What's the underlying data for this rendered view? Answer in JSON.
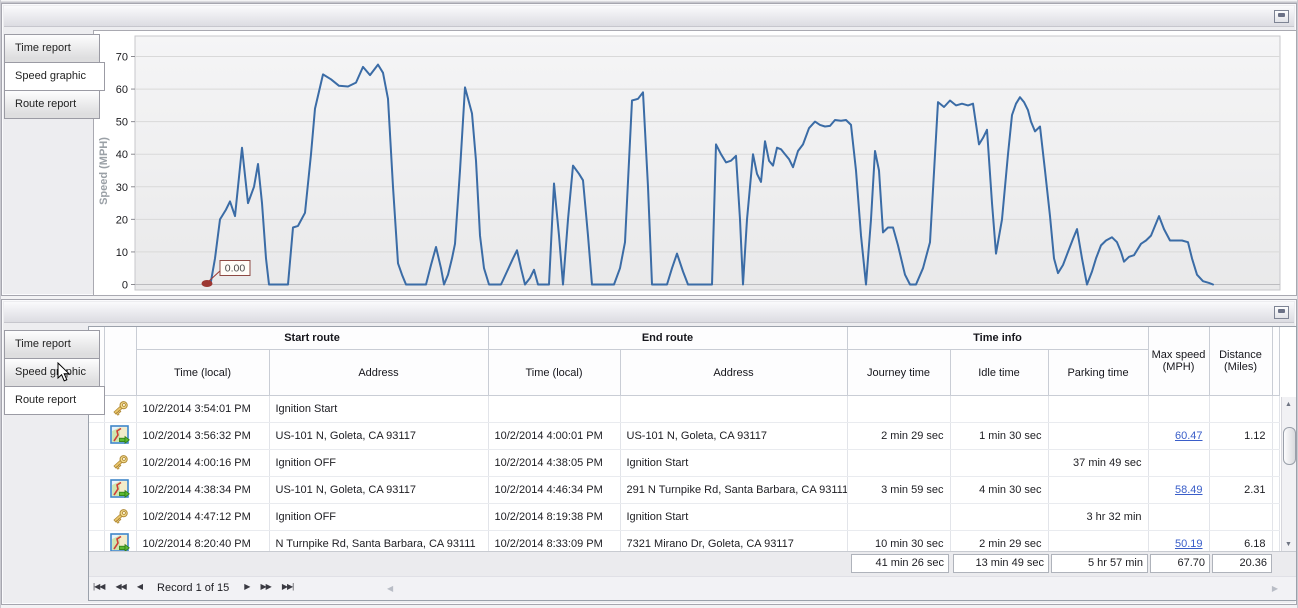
{
  "top_panel": {
    "tabs": [
      {
        "label": "Time report",
        "active": false
      },
      {
        "label": "Speed graphic",
        "active": true
      },
      {
        "label": "Route report",
        "active": false
      }
    ]
  },
  "bottom_panel": {
    "tabs": [
      {
        "label": "Time report",
        "active": false
      },
      {
        "label": "Speed graphic",
        "active": false
      },
      {
        "label": "Route report",
        "active": true
      }
    ]
  },
  "chart_data": {
    "type": "line",
    "title": "",
    "ylabel": "Speed (MPH)",
    "yticks": [
      0,
      10,
      20,
      30,
      40,
      50,
      60,
      70
    ],
    "ylim": [
      0,
      72
    ],
    "xlabel": "",
    "x_axis_note": "time axis, no tick labels visible",
    "grid": "horizontal",
    "line_color": "#3b6ca6",
    "annotation": {
      "label": "0.00",
      "marker_color": "#9c3732"
    },
    "points": [
      [
        205,
        0
      ],
      [
        209,
        1
      ],
      [
        213,
        8
      ],
      [
        218,
        20
      ],
      [
        224,
        23
      ],
      [
        228,
        25.5
      ],
      [
        233,
        21
      ],
      [
        240,
        42
      ],
      [
        246,
        25
      ],
      [
        252,
        30
      ],
      [
        256,
        37
      ],
      [
        260,
        25
      ],
      [
        264,
        8
      ],
      [
        267,
        0
      ],
      [
        286,
        0
      ],
      [
        291,
        17.5
      ],
      [
        296,
        18
      ],
      [
        303,
        22
      ],
      [
        309,
        40
      ],
      [
        313,
        54
      ],
      [
        321,
        64.5
      ],
      [
        329,
        63
      ],
      [
        337,
        61
      ],
      [
        346,
        60.8
      ],
      [
        354,
        62
      ],
      [
        361,
        66.8
      ],
      [
        368,
        64.3
      ],
      [
        376,
        67.5
      ],
      [
        381,
        65
      ],
      [
        386,
        57
      ],
      [
        391,
        30
      ],
      [
        396,
        6.5
      ],
      [
        400,
        3
      ],
      [
        404,
        0
      ],
      [
        424,
        0
      ],
      [
        429,
        6
      ],
      [
        434,
        11.5
      ],
      [
        439,
        5
      ],
      [
        442,
        0
      ],
      [
        446,
        3
      ],
      [
        450,
        8
      ],
      [
        453,
        12.5
      ],
      [
        458,
        35
      ],
      [
        463,
        60.5
      ],
      [
        470,
        52.5
      ],
      [
        474,
        38
      ],
      [
        478,
        15
      ],
      [
        482,
        5
      ],
      [
        487,
        0
      ],
      [
        499,
        0
      ],
      [
        505,
        4
      ],
      [
        511,
        8
      ],
      [
        515,
        10.5
      ],
      [
        519,
        5
      ],
      [
        523,
        0
      ],
      [
        528,
        2
      ],
      [
        532,
        4.5
      ],
      [
        536,
        0
      ],
      [
        547,
        0
      ],
      [
        552,
        31
      ],
      [
        557,
        15
      ],
      [
        561,
        0
      ],
      [
        566,
        20
      ],
      [
        571,
        36.5
      ],
      [
        577,
        34
      ],
      [
        581,
        32
      ],
      [
        586,
        15
      ],
      [
        590,
        0
      ],
      [
        612,
        0
      ],
      [
        618,
        5
      ],
      [
        623,
        13
      ],
      [
        630,
        56.5
      ],
      [
        636,
        57
      ],
      [
        641,
        59
      ],
      [
        646,
        30
      ],
      [
        650,
        0
      ],
      [
        665,
        0
      ],
      [
        670,
        5
      ],
      [
        675,
        9.5
      ],
      [
        681,
        4
      ],
      [
        686,
        0
      ],
      [
        710,
        0
      ],
      [
        714,
        43
      ],
      [
        719,
        40
      ],
      [
        724,
        37.5
      ],
      [
        729,
        38
      ],
      [
        734,
        39.5
      ],
      [
        738,
        20
      ],
      [
        741,
        0
      ],
      [
        745,
        20
      ],
      [
        751,
        40
      ],
      [
        755,
        34
      ],
      [
        759,
        31.5
      ],
      [
        763,
        44
      ],
      [
        767,
        38
      ],
      [
        771,
        36.5
      ],
      [
        775,
        42
      ],
      [
        779,
        41.5
      ],
      [
        783,
        40
      ],
      [
        787,
        38.5
      ],
      [
        791,
        36
      ],
      [
        796,
        41
      ],
      [
        801,
        43
      ],
      [
        807,
        48
      ],
      [
        813,
        50
      ],
      [
        818,
        49
      ],
      [
        823,
        48.5
      ],
      [
        828,
        48.7
      ],
      [
        833,
        50.5
      ],
      [
        839,
        50.3
      ],
      [
        844,
        50.5
      ],
      [
        849,
        49
      ],
      [
        854,
        35
      ],
      [
        859,
        15
      ],
      [
        864,
        0
      ],
      [
        869,
        20
      ],
      [
        873,
        41
      ],
      [
        877,
        35
      ],
      [
        881,
        16
      ],
      [
        886,
        17.5
      ],
      [
        891,
        17.5
      ],
      [
        896,
        12
      ],
      [
        903,
        3
      ],
      [
        908,
        0
      ],
      [
        914,
        0
      ],
      [
        921,
        5
      ],
      [
        928,
        13
      ],
      [
        936,
        56
      ],
      [
        942,
        54.5
      ],
      [
        948,
        56.5
      ],
      [
        954,
        55
      ],
      [
        960,
        55.5
      ],
      [
        966,
        55
      ],
      [
        971,
        55.5
      ],
      [
        977,
        43
      ],
      [
        981,
        45
      ],
      [
        985,
        47.5
      ],
      [
        990,
        25
      ],
      [
        994,
        9.5
      ],
      [
        1000,
        20
      ],
      [
        1006,
        40
      ],
      [
        1010,
        52
      ],
      [
        1014,
        55.5
      ],
      [
        1018,
        57.5
      ],
      [
        1022,
        56
      ],
      [
        1026,
        53.5
      ],
      [
        1029,
        50
      ],
      [
        1033,
        47
      ],
      [
        1038,
        48.5
      ],
      [
        1043,
        35
      ],
      [
        1048,
        21
      ],
      [
        1052,
        8
      ],
      [
        1056,
        3.5
      ],
      [
        1061,
        6
      ],
      [
        1066,
        10
      ],
      [
        1071,
        14
      ],
      [
        1075,
        17
      ],
      [
        1080,
        8
      ],
      [
        1085,
        0
      ],
      [
        1090,
        4
      ],
      [
        1094,
        8
      ],
      [
        1099,
        12
      ],
      [
        1104,
        13.5
      ],
      [
        1110,
        14.5
      ],
      [
        1115,
        13
      ],
      [
        1119,
        10
      ],
      [
        1122,
        7
      ],
      [
        1127,
        8.5
      ],
      [
        1132,
        9
      ],
      [
        1139,
        12.5
      ],
      [
        1144,
        13.5
      ],
      [
        1149,
        15
      ],
      [
        1153,
        18
      ],
      [
        1157,
        21
      ],
      [
        1162,
        17
      ],
      [
        1168,
        13.5
      ],
      [
        1174,
        13.5
      ],
      [
        1180,
        13.5
      ],
      [
        1186,
        13
      ],
      [
        1190,
        8
      ],
      [
        1195,
        3
      ],
      [
        1201,
        1
      ],
      [
        1207,
        0.5
      ],
      [
        1211,
        0
      ]
    ]
  },
  "table": {
    "groups": [
      {
        "label": "Start route"
      },
      {
        "label": "End route"
      },
      {
        "label": "Time info"
      }
    ],
    "sub_columns": {
      "start_time": "Time (local)",
      "start_address": "Address",
      "end_time": "Time (local)",
      "end_address": "Address",
      "journey": "Journey time",
      "idle": "Idle time",
      "parking": "Parking time"
    },
    "tall_columns": {
      "max_speed": "Max speed\n(MPH)",
      "distance": "Distance\n(Miles)"
    },
    "rows": [
      {
        "icon": "key-icon",
        "start_time": "10/2/2014 3:54:01 PM",
        "start_address": "Ignition Start",
        "end_time": "",
        "end_address": "",
        "journey": "",
        "idle": "",
        "parking": "",
        "max_speed": "",
        "max_speed_link": false,
        "distance": ""
      },
      {
        "icon": "route-icon",
        "start_time": "10/2/2014 3:56:32 PM",
        "start_address": "US-101 N, Goleta, CA 93117",
        "end_time": "10/2/2014 4:00:01 PM",
        "end_address": "US-101 N, Goleta, CA 93117",
        "journey": "2 min 29 sec",
        "idle": "1 min 30 sec",
        "parking": "",
        "max_speed": "60.47",
        "max_speed_link": true,
        "distance": "1.12"
      },
      {
        "icon": "key-icon",
        "start_time": "10/2/2014 4:00:16 PM",
        "start_address": "Ignition OFF",
        "end_time": "10/2/2014 4:38:05 PM",
        "end_address": "Ignition Start",
        "journey": "",
        "idle": "",
        "parking": "37 min 49 sec",
        "max_speed": "",
        "max_speed_link": false,
        "distance": ""
      },
      {
        "icon": "route-icon",
        "start_time": "10/2/2014 4:38:34 PM",
        "start_address": "US-101 N, Goleta, CA 93117",
        "end_time": "10/2/2014 4:46:34 PM",
        "end_address": "291 N Turnpike Rd, Santa Barbara, CA 93111",
        "journey": "3 min 59 sec",
        "idle": "4 min 30 sec",
        "parking": "",
        "max_speed": "58.49",
        "max_speed_link": true,
        "distance": "2.31"
      },
      {
        "icon": "key-icon",
        "start_time": "10/2/2014 4:47:12 PM",
        "start_address": "Ignition OFF",
        "end_time": "10/2/2014 8:19:38 PM",
        "end_address": "Ignition Start",
        "journey": "",
        "idle": "",
        "parking": "3 hr 32 min",
        "max_speed": "",
        "max_speed_link": false,
        "distance": ""
      },
      {
        "icon": "route-icon",
        "start_time": "10/2/2014 8:20:40 PM",
        "start_address": "N Turnpike Rd, Santa Barbara, CA 93111",
        "end_time": "10/2/2014 8:33:09 PM",
        "end_address": "7321 Mirano Dr, Goleta, CA 93117",
        "journey": "10 min 30 sec",
        "idle": "2 min 29 sec",
        "parking": "",
        "max_speed": "50.19",
        "max_speed_link": true,
        "distance": "6.18"
      }
    ],
    "summary": {
      "journey": "41 min 26 sec",
      "idle": "13 min 49 sec",
      "parking": "5 hr 57 min",
      "max_speed": "67.70",
      "distance": "20.36"
    },
    "pager": {
      "record_label": "Record 1 of 15",
      "buttons": {
        "first": "|◀◀",
        "prev_page": "◀◀",
        "prev": "◀",
        "next": "▶",
        "next_page": "▶▶",
        "last": "▶▶|"
      }
    }
  },
  "colors": {
    "accent_line": "#3b6ca6",
    "link": "#3a5ec9",
    "marker": "#9c3732",
    "panel_bg": "#ededf0",
    "grid": "#d9d9d9"
  }
}
